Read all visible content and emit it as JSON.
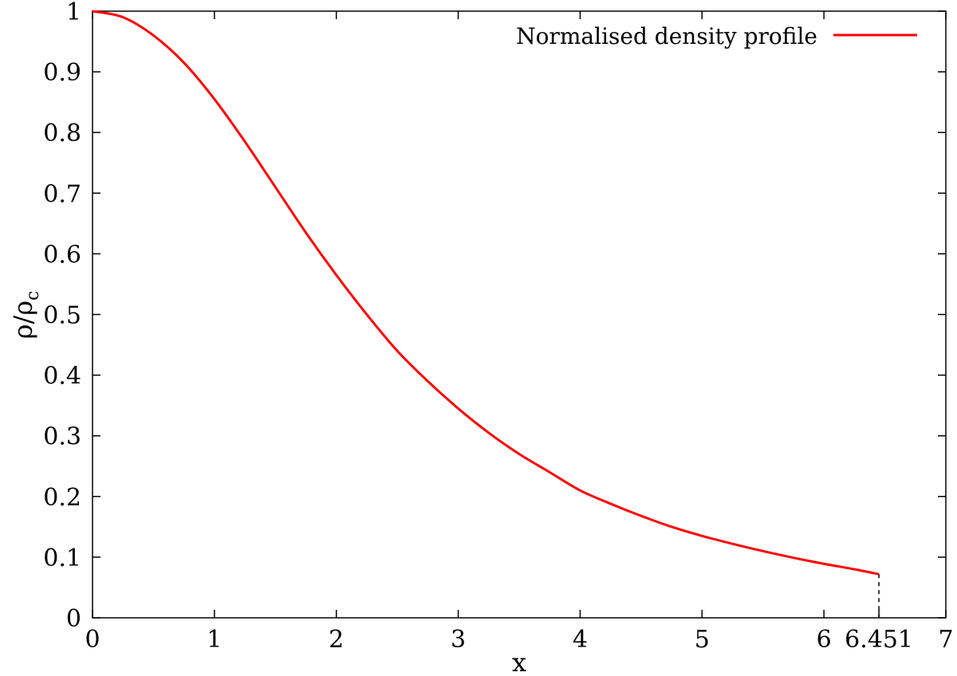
{
  "chart_data": {
    "type": "line",
    "title": "",
    "xlabel": "x",
    "ylabel": "ρ/ρ",
    "ylabel_sub": "c",
    "xlim": [
      0,
      7
    ],
    "ylim": [
      0,
      1
    ],
    "x_ticks": [
      0,
      1,
      2,
      3,
      4,
      5,
      6,
      7
    ],
    "y_ticks": [
      0,
      0.1,
      0.2,
      0.3,
      0.4,
      0.5,
      0.6,
      0.7,
      0.8,
      0.9,
      1
    ],
    "extra_x_tick": {
      "value": 6.451,
      "label": "6.451"
    },
    "grid": false,
    "legend": "top-right",
    "series": [
      {
        "name": "Normalised density profile",
        "color": "#ff0000",
        "x": [
          0,
          0.25,
          0.5,
          0.75,
          1.0,
          1.25,
          1.5,
          1.75,
          2.0,
          2.25,
          2.5,
          2.75,
          3.0,
          3.25,
          3.5,
          3.75,
          4.0,
          4.25,
          4.5,
          4.75,
          5.0,
          5.25,
          5.5,
          5.75,
          6.0,
          6.25,
          6.451
        ],
        "y": [
          1.0,
          0.99,
          0.96,
          0.915,
          0.855,
          0.785,
          0.71,
          0.635,
          0.565,
          0.5,
          0.44,
          0.39,
          0.345,
          0.305,
          0.27,
          0.24,
          0.21,
          0.188,
          0.168,
          0.15,
          0.135,
          0.122,
          0.11,
          0.099,
          0.089,
          0.08,
          0.072
        ]
      }
    ],
    "annotations": [
      {
        "type": "dashed-drop-line",
        "x": 6.451,
        "from_y": 0.072,
        "to_y": 0
      }
    ]
  }
}
